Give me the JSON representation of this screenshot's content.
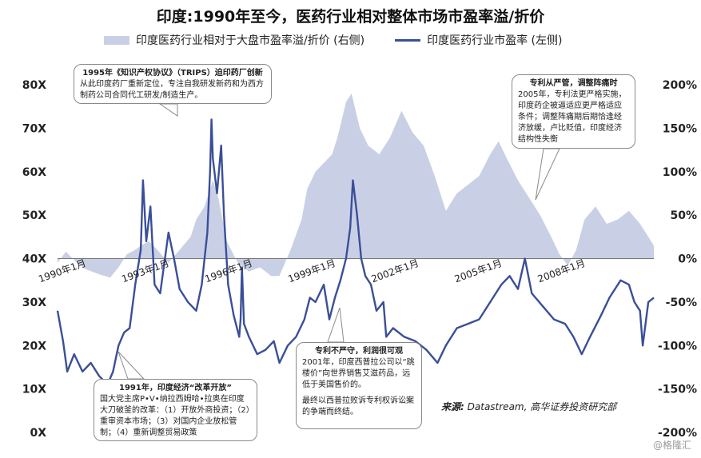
{
  "page": {
    "title": "印度:1990年至今，医药行业相对整体市场市盈率溢/折价",
    "source_label": "来源:",
    "source_text": "Datastream, 高华证券投资研究部",
    "watermark": "@格隆汇"
  },
  "legend": {
    "area_label": "印度医药行业相对于大盘市盈率溢/折价 (右侧)",
    "line_label": "印度医药行业市盈率 (左侧)"
  },
  "colors": {
    "area": "#c9d0e6",
    "line": "#3a4f98",
    "zero": "#777777"
  },
  "callouts": [
    {
      "id": "trips",
      "title": "1995年《知识产权协议》（TRIPS）迫印药厂创新",
      "body": "从此印度药厂重新定位，专注自我研发新药和为西方制药公司合同代工研发/制造生产。"
    },
    {
      "id": "liberal",
      "title": "1991年，印度经济“改革开放”",
      "body": "国大党主席P•V•纳拉西姆哈•拉奥在印度大刀破釜的改革：（1）开放外商投资；（2）重审资本市场；（3）对国内企业放松管制；（4）重新调整贸易政策"
    },
    {
      "id": "patent",
      "title": "专利不严守，利润很可观",
      "body": "2001年，印度西普拉公司以“跳楼价”向世界销售艾滋药品，远低于美国售价的。",
      "body2": "最终以西普拉败诉专利权诉讼案的争端而终结。"
    },
    {
      "id": "strict",
      "title": "专利从严管，调整阵痛时",
      "body": "2005年，专利法更严格实施，印度药企被逼适应更严格适应条件；调整阵痛期后期恰逢经济放缓，卢比贬值，印度经济结构性失衡"
    }
  ],
  "chart_data": {
    "type": "line",
    "title": "印度:1990年至今，医药行业相对整体市场市盈率溢/折价",
    "x_range": [
      "1990-01",
      "2011-06"
    ],
    "x_tick_labels": [
      "1990年1月",
      "1993年1月",
      "1996年1月",
      "1999年1月",
      "2002年1月",
      "2005年1月",
      "2008年1月"
    ],
    "left_axis": {
      "ticks": [
        "0X",
        "10X",
        "20X",
        "30X",
        "40X",
        "50X",
        "60X",
        "70X",
        "80X"
      ],
      "range": [
        0,
        80
      ]
    },
    "right_axis": {
      "ticks": [
        "-200%",
        "-150%",
        "-100%",
        "-50%",
        "0%",
        "50%",
        "100%",
        "150%",
        "200%"
      ],
      "range": [
        -200,
        200
      ]
    },
    "series": [
      {
        "name": "印度医药行业市盈率 (左侧)",
        "axis": "left",
        "style": "line",
        "points": [
          [
            1990.0,
            28
          ],
          [
            1990.2,
            21
          ],
          [
            1990.35,
            14
          ],
          [
            1990.6,
            18
          ],
          [
            1990.9,
            14
          ],
          [
            1991.2,
            16
          ],
          [
            1991.5,
            13
          ],
          [
            1991.8,
            11
          ],
          [
            1992.0,
            14
          ],
          [
            1992.2,
            20
          ],
          [
            1992.4,
            23
          ],
          [
            1992.6,
            24
          ],
          [
            1992.8,
            34
          ],
          [
            1992.9,
            38
          ],
          [
            1993.0,
            42
          ],
          [
            1993.08,
            58
          ],
          [
            1993.2,
            44
          ],
          [
            1993.35,
            52
          ],
          [
            1993.5,
            34
          ],
          [
            1993.7,
            32
          ],
          [
            1994.0,
            46
          ],
          [
            1994.2,
            40
          ],
          [
            1994.4,
            33
          ],
          [
            1994.7,
            30
          ],
          [
            1995.0,
            28
          ],
          [
            1995.2,
            34
          ],
          [
            1995.4,
            46
          ],
          [
            1995.5,
            60
          ],
          [
            1995.55,
            72
          ],
          [
            1995.6,
            63
          ],
          [
            1995.75,
            55
          ],
          [
            1995.9,
            66
          ],
          [
            1996.0,
            50
          ],
          [
            1996.15,
            34
          ],
          [
            1996.35,
            27
          ],
          [
            1996.55,
            22
          ],
          [
            1996.6,
            26
          ],
          [
            1996.65,
            38
          ],
          [
            1996.72,
            25
          ],
          [
            1996.9,
            22
          ],
          [
            1997.2,
            18
          ],
          [
            1997.5,
            19
          ],
          [
            1997.8,
            21
          ],
          [
            1998.0,
            16
          ],
          [
            1998.3,
            20
          ],
          [
            1998.6,
            22
          ],
          [
            1998.9,
            26
          ],
          [
            1999.1,
            31
          ],
          [
            1999.3,
            30
          ],
          [
            1999.6,
            34
          ],
          [
            1999.8,
            26
          ],
          [
            2000.0,
            31
          ],
          [
            2000.2,
            35
          ],
          [
            2000.4,
            40
          ],
          [
            2000.55,
            47
          ],
          [
            2000.65,
            58
          ],
          [
            2000.8,
            50
          ],
          [
            2000.95,
            40
          ],
          [
            2001.1,
            36
          ],
          [
            2001.3,
            34
          ],
          [
            2001.5,
            28
          ],
          [
            2001.75,
            30
          ],
          [
            2001.85,
            22
          ],
          [
            2002.1,
            24
          ],
          [
            2002.5,
            22
          ],
          [
            2002.9,
            21
          ],
          [
            2003.3,
            19
          ],
          [
            2003.7,
            16
          ],
          [
            2004.0,
            20
          ],
          [
            2004.4,
            24
          ],
          [
            2004.8,
            25
          ],
          [
            2005.2,
            26
          ],
          [
            2005.6,
            30
          ],
          [
            2006.0,
            34
          ],
          [
            2006.3,
            36
          ],
          [
            2006.6,
            33
          ],
          [
            2006.85,
            40
          ],
          [
            2007.1,
            32
          ],
          [
            2007.5,
            29
          ],
          [
            2007.9,
            26
          ],
          [
            2008.3,
            25
          ],
          [
            2008.6,
            22
          ],
          [
            2008.9,
            18
          ],
          [
            2009.2,
            22
          ],
          [
            2009.6,
            27
          ],
          [
            2009.9,
            31
          ],
          [
            2010.3,
            35
          ],
          [
            2010.6,
            34
          ],
          [
            2010.8,
            30
          ],
          [
            2011.0,
            28
          ],
          [
            2011.1,
            20
          ],
          [
            2011.3,
            30
          ],
          [
            2011.5,
            31
          ]
        ]
      },
      {
        "name": "印度医药行业相对于大盘市盈率溢/折价 (右侧)",
        "axis": "right",
        "style": "area",
        "points": [
          [
            1990.0,
            -5
          ],
          [
            1990.3,
            8
          ],
          [
            1990.7,
            -5
          ],
          [
            1991.0,
            -12
          ],
          [
            1991.5,
            -18
          ],
          [
            1991.9,
            -22
          ],
          [
            1992.2,
            -10
          ],
          [
            1992.5,
            5
          ],
          [
            1992.8,
            10
          ],
          [
            1993.0,
            15
          ],
          [
            1993.3,
            20
          ],
          [
            1993.6,
            10
          ],
          [
            1994.0,
            -5
          ],
          [
            1994.4,
            10
          ],
          [
            1994.8,
            25
          ],
          [
            1995.0,
            45
          ],
          [
            1995.3,
            60
          ],
          [
            1995.6,
            90
          ],
          [
            1995.8,
            70
          ],
          [
            1996.1,
            20
          ],
          [
            1996.5,
            -5
          ],
          [
            1996.9,
            -15
          ],
          [
            1997.3,
            -10
          ],
          [
            1997.7,
            -20
          ],
          [
            1998.0,
            -20
          ],
          [
            1998.4,
            10
          ],
          [
            1998.8,
            45
          ],
          [
            1999.0,
            80
          ],
          [
            1999.3,
            100
          ],
          [
            1999.6,
            110
          ],
          [
            1999.9,
            120
          ],
          [
            2000.1,
            140
          ],
          [
            2000.4,
            180
          ],
          [
            2000.6,
            190
          ],
          [
            2000.9,
            150
          ],
          [
            2001.2,
            130
          ],
          [
            2001.6,
            120
          ],
          [
            2002.0,
            140
          ],
          [
            2002.4,
            170
          ],
          [
            2002.8,
            145
          ],
          [
            2003.2,
            130
          ],
          [
            2003.6,
            95
          ],
          [
            2004.0,
            55
          ],
          [
            2004.4,
            75
          ],
          [
            2004.8,
            85
          ],
          [
            2005.2,
            95
          ],
          [
            2005.6,
            120
          ],
          [
            2005.9,
            135
          ],
          [
            2006.2,
            115
          ],
          [
            2006.6,
            90
          ],
          [
            2007.0,
            70
          ],
          [
            2007.4,
            50
          ],
          [
            2007.8,
            25
          ],
          [
            2008.1,
            5
          ],
          [
            2008.4,
            -8
          ],
          [
            2008.7,
            10
          ],
          [
            2009.0,
            45
          ],
          [
            2009.4,
            60
          ],
          [
            2009.8,
            40
          ],
          [
            2010.2,
            45
          ],
          [
            2010.6,
            55
          ],
          [
            2011.0,
            40
          ],
          [
            2011.3,
            25
          ],
          [
            2011.5,
            15
          ]
        ]
      }
    ],
    "grid": false,
    "legend_position": "top"
  }
}
